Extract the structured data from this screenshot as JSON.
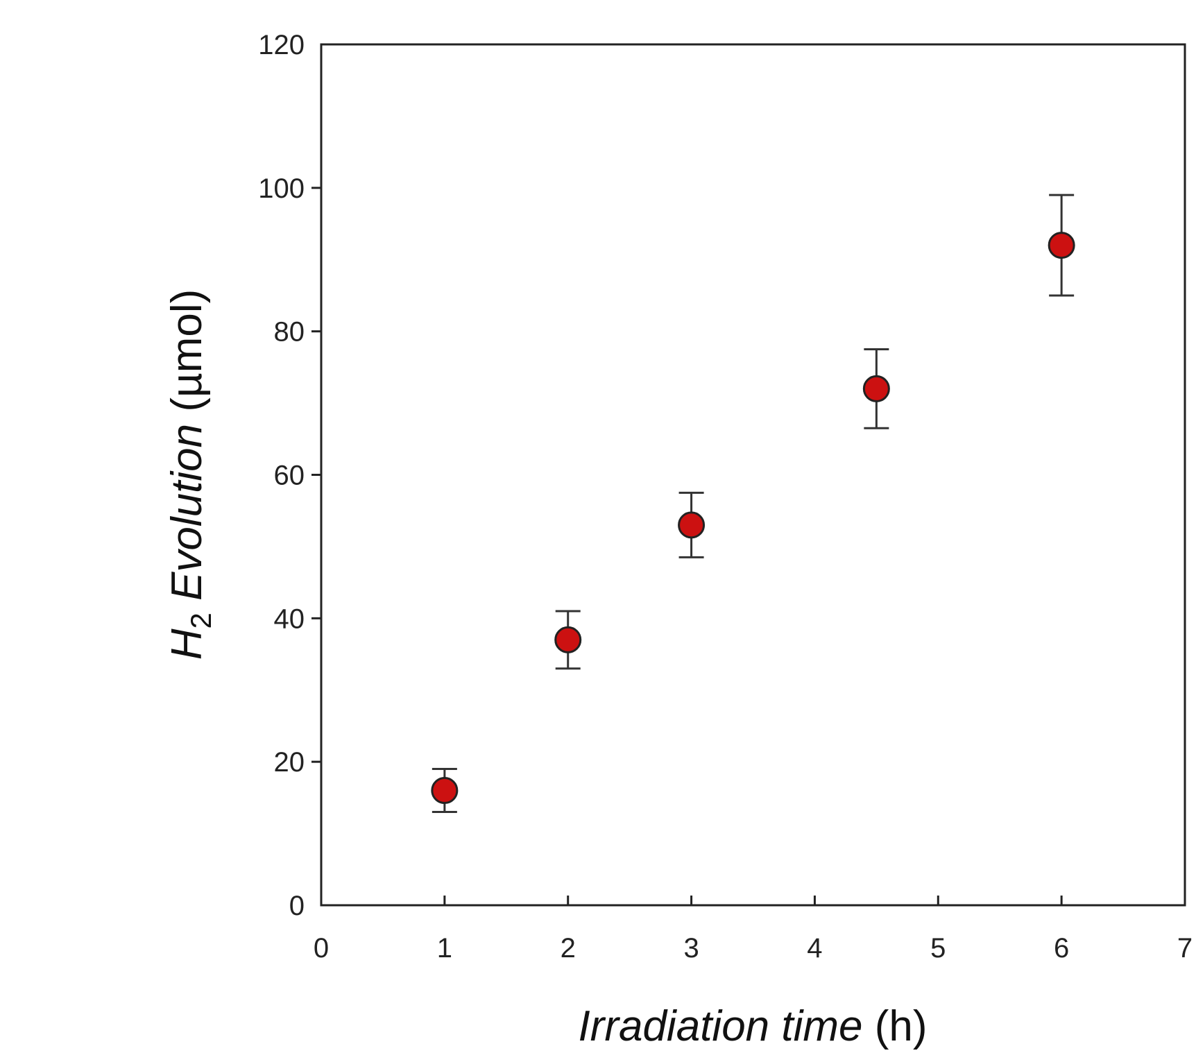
{
  "chart_data": {
    "type": "scatter",
    "title": "",
    "xlabel": {
      "italic": "Irradiation time",
      "unit": "(h)"
    },
    "ylabel": {
      "symbol": "H",
      "subscript": "2",
      "italic": "Evolution",
      "unit": "(µmol)"
    },
    "xlim": [
      0,
      7
    ],
    "ylim": [
      0,
      120
    ],
    "xticks": [
      0,
      1,
      2,
      3,
      4,
      5,
      6,
      7
    ],
    "yticks": [
      0,
      20,
      40,
      60,
      80,
      100,
      120
    ],
    "grid": false,
    "legend": "none",
    "marker_color": "#cc1111",
    "points": [
      {
        "x": 1,
        "y": 16,
        "err_low": 13,
        "err_high": 19
      },
      {
        "x": 2,
        "y": 37,
        "err_low": 33,
        "err_high": 41
      },
      {
        "x": 3,
        "y": 53,
        "err_low": 48.5,
        "err_high": 57.5
      },
      {
        "x": 4.5,
        "y": 72,
        "err_low": 66.5,
        "err_high": 77.5
      },
      {
        "x": 6,
        "y": 92,
        "err_low": 85,
        "err_high": 99
      }
    ]
  }
}
